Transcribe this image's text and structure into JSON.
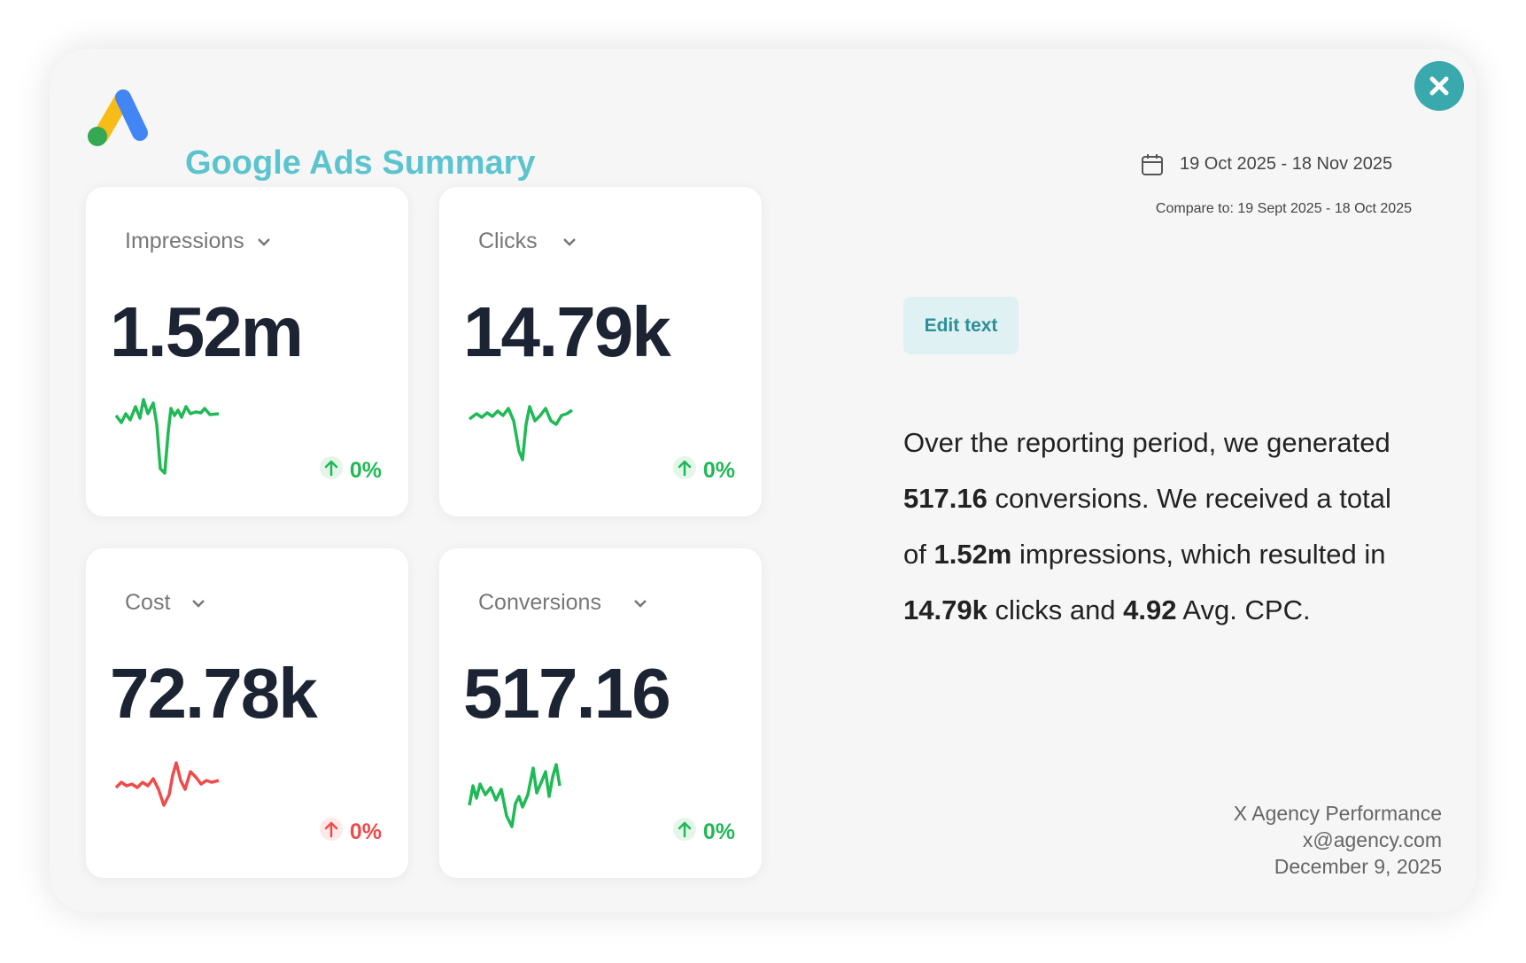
{
  "header": {
    "title": "Google Ads Summary",
    "date_range": "19 Oct 2025 - 18 Nov 2025",
    "compare": "Compare to: 19 Sept 2025 - 18 Oct 2025"
  },
  "cards": [
    {
      "label": "Impressions",
      "value": "1.52m",
      "change": "0%",
      "color": "#1fb955"
    },
    {
      "label": "Clicks",
      "value": "14.79k",
      "change": "0%",
      "color": "#1fb955"
    },
    {
      "label": "Cost",
      "value": "72.78k",
      "change": "0%",
      "color": "#ef4b4b"
    },
    {
      "label": "Conversions",
      "value": "517.16",
      "change": "0%",
      "color": "#1fb955"
    }
  ],
  "edit_button": "Edit text",
  "summary": {
    "lines": [
      [
        {
          "text": "Over the reporting period, we generated",
          "bold": false
        }
      ],
      [
        {
          "text": "517.16",
          "bold": true
        },
        {
          "text": " conversions. We received a total",
          "bold": false
        }
      ],
      [
        {
          "text": "of ",
          "bold": false
        },
        {
          "text": "1.52m",
          "bold": true
        },
        {
          "text": " impressions, which resulted in",
          "bold": false
        }
      ],
      [
        {
          "text": "14.79k",
          "bold": true
        },
        {
          "text": " clicks and ",
          "bold": false
        },
        {
          "text": "4.92",
          "bold": true
        },
        {
          "text": " Avg. CPC.",
          "bold": false
        }
      ]
    ]
  },
  "footer": {
    "lines": [
      "X Agency Performance",
      "x@agency.com",
      "December 9, 2025"
    ]
  }
}
